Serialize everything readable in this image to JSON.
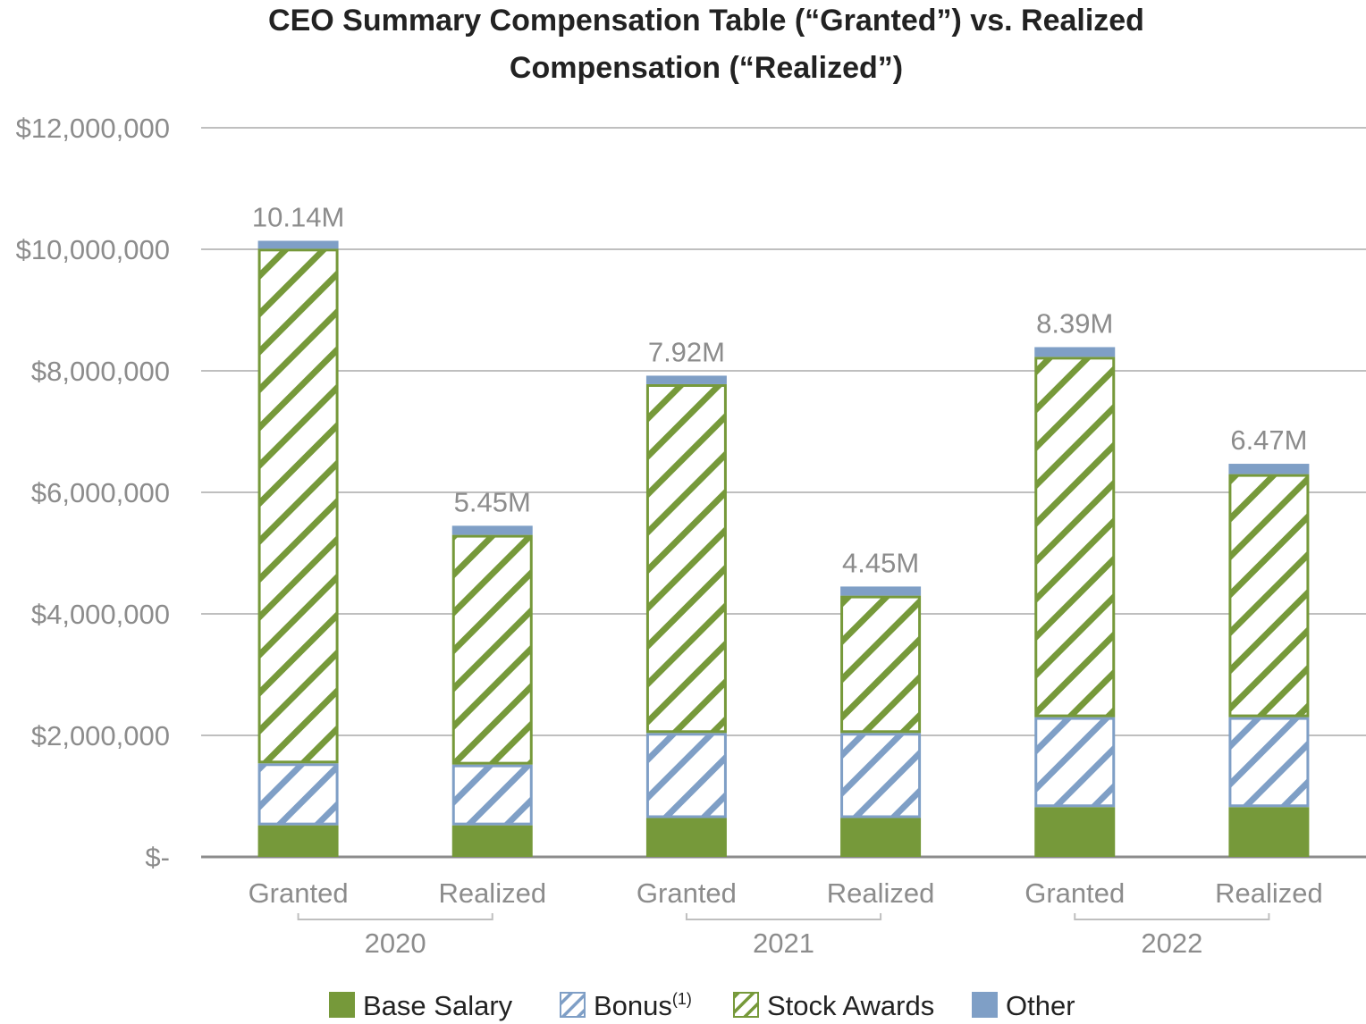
{
  "chart_data": {
    "type": "bar",
    "stacked": true,
    "title_lines": [
      "CEO Summary Compensation Table (“Granted”) vs. Realized",
      "Compensation (“Realized”)"
    ],
    "xlabel": "",
    "ylabel": "",
    "ylim": [
      0,
      12000000
    ],
    "y_ticks": [
      {
        "value": 0,
        "label": "$-"
      },
      {
        "value": 2000000,
        "label": "$2,000,000"
      },
      {
        "value": 4000000,
        "label": "$4,000,000"
      },
      {
        "value": 6000000,
        "label": "$6,000,000"
      },
      {
        "value": 8000000,
        "label": "$8,000,000"
      },
      {
        "value": 10000000,
        "label": "$10,000,000"
      },
      {
        "value": 12000000,
        "label": "$12,000,000"
      }
    ],
    "grid": true,
    "categories": [
      "Granted",
      "Realized",
      "Granted",
      "Realized",
      "Granted",
      "Realized"
    ],
    "groups": [
      {
        "label": "2020",
        "members": [
          0,
          1
        ]
      },
      {
        "label": "2021",
        "members": [
          2,
          3
        ]
      },
      {
        "label": "2022",
        "members": [
          4,
          5
        ]
      }
    ],
    "series": [
      {
        "name": "Base Salary",
        "color": "#76993a",
        "pattern": "solid",
        "values": [
          520000,
          520000,
          640000,
          640000,
          820000,
          820000
        ]
      },
      {
        "name": "Bonus",
        "legend_sup": "(1)",
        "color": "#7f9fc6",
        "pattern": "hatch",
        "values": [
          1020000,
          1000000,
          1400000,
          1400000,
          1480000,
          1480000
        ]
      },
      {
        "name": "Stock Awards",
        "color": "#76993a",
        "pattern": "hatch",
        "values": [
          8470000,
          3780000,
          5740000,
          2260000,
          5930000,
          4000000
        ]
      },
      {
        "name": "Other",
        "color": "#7f9fc6",
        "pattern": "solid",
        "values": [
          130000,
          150000,
          140000,
          150000,
          160000,
          170000
        ]
      }
    ],
    "totals": [
      "10.14M",
      "5.45M",
      "7.92M",
      "4.45M",
      "8.39M",
      "6.47M"
    ],
    "legend_position": "bottom"
  }
}
